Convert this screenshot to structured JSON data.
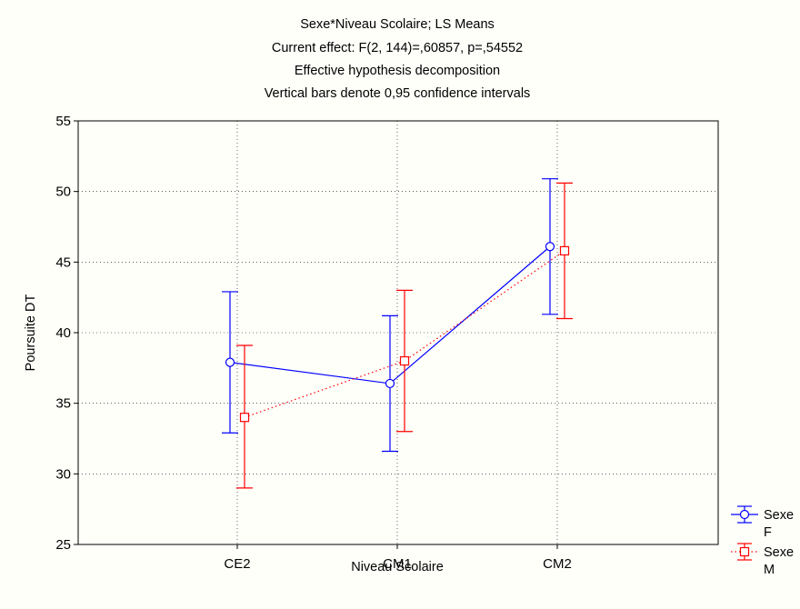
{
  "chart_data": {
    "type": "line",
    "title_lines": [
      "Sexe*Niveau Scolaire; LS Means",
      "Current effect: F(2, 144)=,60857, p=,54552",
      "Effective hypothesis decomposition",
      "Vertical bars denote 0,95 confidence intervals"
    ],
    "xlabel": "Niveau Scolaire",
    "ylabel": "Poursuite DT",
    "categories": [
      "CE2",
      "CM1",
      "CM2"
    ],
    "ylim": [
      25,
      55
    ],
    "yticks": [
      "25",
      "30",
      "35",
      "40",
      "45",
      "50",
      "55"
    ],
    "grid": true,
    "legend_placement": "bottom-right",
    "series": [
      {
        "name": "Sexe F",
        "legend_lines": [
          "Sexe",
          "F"
        ],
        "values": [
          37.9,
          36.4,
          46.1
        ],
        "ci_low": [
          32.9,
          31.6,
          41.3
        ],
        "ci_high": [
          42.9,
          41.2,
          50.9
        ],
        "color": "#0000ff",
        "marker": "circle",
        "line_style": "solid"
      },
      {
        "name": "Sexe M",
        "legend_lines": [
          "Sexe",
          "M"
        ],
        "values": [
          34.0,
          38.0,
          45.8
        ],
        "ci_low": [
          29.0,
          33.0,
          41.0
        ],
        "ci_high": [
          39.1,
          43.0,
          50.6
        ],
        "color": "#ff0000",
        "marker": "square",
        "line_style": "dotted"
      }
    ]
  }
}
